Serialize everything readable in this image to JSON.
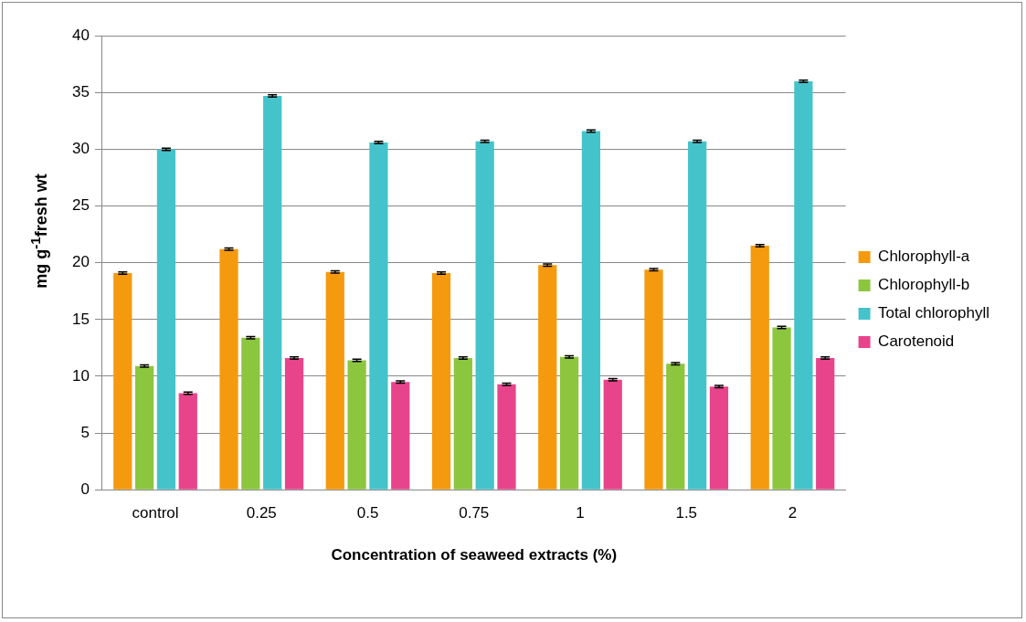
{
  "chart_data": {
    "type": "bar",
    "xlabel": "Concentration of seaweed extracts (%)",
    "ylabel": "mg g$^{-1}$fresh wt",
    "categories": [
      "control",
      "0.25",
      "0.5",
      "0.75",
      "1",
      "1.5",
      "2"
    ],
    "series": [
      {
        "name": "Chlorophyll-a",
        "color": "#f59a0e",
        "values": [
          19.1,
          21.2,
          19.2,
          19.1,
          19.8,
          19.4,
          21.5
        ],
        "errors": [
          0.1,
          0.1,
          0.1,
          0.1,
          0.1,
          0.1,
          0.1
        ]
      },
      {
        "name": "Chlorophyll-b",
        "color": "#8cc63f",
        "values": [
          10.9,
          13.4,
          11.4,
          11.6,
          11.7,
          11.1,
          14.3
        ],
        "errors": [
          0.1,
          0.1,
          0.1,
          0.1,
          0.1,
          0.1,
          0.1
        ]
      },
      {
        "name": "Total chlorophyll",
        "color": "#45c3cb",
        "values": [
          30.0,
          34.7,
          30.6,
          30.7,
          31.6,
          30.7,
          36.0
        ],
        "errors": [
          0.1,
          0.1,
          0.1,
          0.1,
          0.1,
          0.1,
          0.1
        ]
      },
      {
        "name": "Carotenoid",
        "color": "#e8448c",
        "values": [
          8.5,
          11.6,
          9.5,
          9.3,
          9.7,
          9.1,
          11.6
        ],
        "errors": [
          0.1,
          0.1,
          0.1,
          0.1,
          0.1,
          0.1,
          0.1
        ]
      }
    ],
    "ylim": [
      0,
      40
    ],
    "yticks": [
      0,
      5,
      10,
      15,
      20,
      25,
      30,
      35,
      40
    ],
    "grid": "y",
    "legend": "right"
  }
}
